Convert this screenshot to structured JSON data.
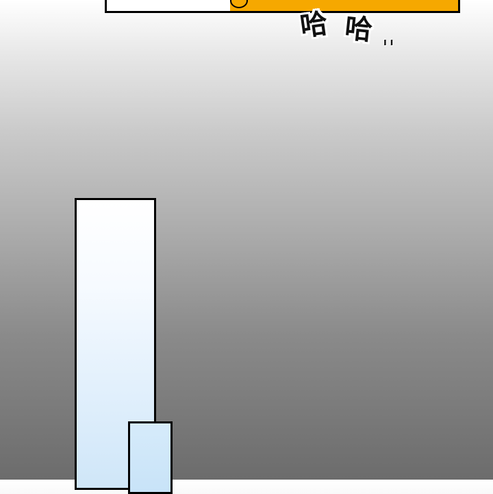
{
  "sfx": {
    "laugh_1": "哈",
    "laugh_2": "哈",
    "trail": "ı ı"
  },
  "colors": {
    "accent_orange": "#f6a800",
    "outline": "#000000",
    "pillar_blue": "#cfe6f8"
  }
}
